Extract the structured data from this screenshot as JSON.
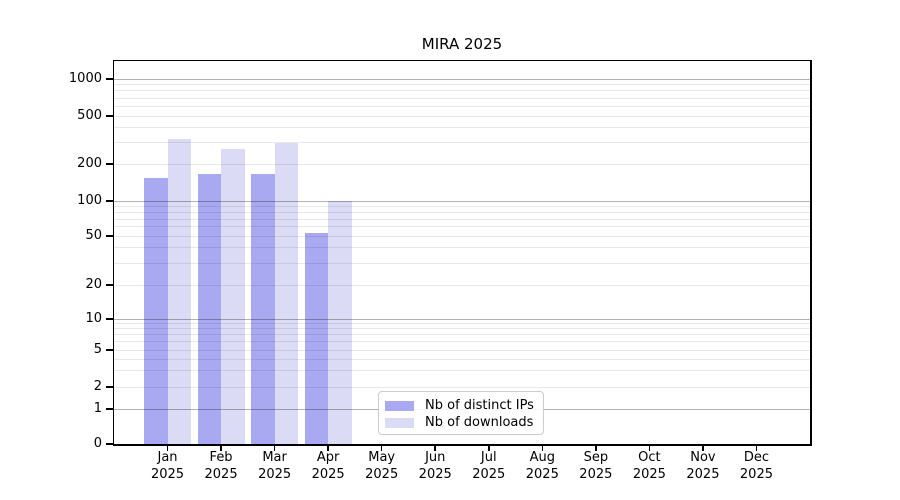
{
  "title": "MIRA 2025",
  "chart_data": {
    "type": "bar",
    "title": "MIRA 2025",
    "categories": [
      "Jan 2025",
      "Feb 2025",
      "Mar 2025",
      "Apr 2025",
      "May 2025",
      "Jun 2025",
      "Jul 2025",
      "Aug 2025",
      "Sep 2025",
      "Oct 2025",
      "Nov 2025",
      "Dec 2025"
    ],
    "series": [
      {
        "name": "Nb of distinct IPs",
        "color": "#a9a9f1",
        "values": [
          155,
          165,
          165,
          53,
          0,
          0,
          0,
          0,
          0,
          0,
          0,
          0
        ]
      },
      {
        "name": "Nb of downloads",
        "color": "#dbdbf6",
        "values": [
          320,
          265,
          300,
          100,
          0,
          0,
          0,
          0,
          0,
          0,
          0,
          0
        ]
      }
    ],
    "xlabel": "",
    "ylabel": "",
    "yscale": "symlog",
    "yticks": [
      0,
      1,
      2,
      5,
      10,
      20,
      50,
      100,
      200,
      500,
      1000
    ],
    "ylim": [
      0,
      1400
    ],
    "grid": "both",
    "legend_position": "lower center"
  },
  "colors": {
    "bar_distinct_ips": "#a9a9f1",
    "bar_downloads": "#dbdbf6",
    "major_grid": "#b0b0b0",
    "minor_grid": "#e8e8e8",
    "spine": "#000000",
    "legend_border": "#cccccc",
    "background": "#ffffff"
  }
}
